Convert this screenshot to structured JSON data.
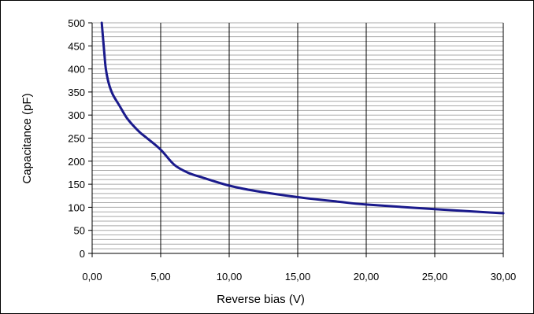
{
  "chart_data": {
    "type": "line",
    "title": "",
    "xlabel": "Reverse bias (V)",
    "ylabel": "Capacitance (pF)",
    "xlim": [
      0,
      30
    ],
    "ylim": [
      0,
      500
    ],
    "x_ticks": [
      "0,00",
      "5,00",
      "10,00",
      "15,00",
      "20,00",
      "25,00",
      "30,00"
    ],
    "y_ticks": [
      "0",
      "50",
      "100",
      "150",
      "200",
      "250",
      "300",
      "350",
      "400",
      "450",
      "500"
    ],
    "grid": {
      "major_vertical_every": 5,
      "horizontal_every": 10
    },
    "legend": "none",
    "series": [
      {
        "color": "#1a1a8c",
        "x": [
          0.7,
          0.9,
          1.0,
          1.2,
          1.5,
          2.0,
          2.5,
          3.0,
          3.5,
          4.0,
          5.0,
          6.0,
          7.0,
          8.0,
          10.0,
          12.0,
          15.0,
          18.0,
          20.0,
          25.0,
          30.0
        ],
        "y": [
          500,
          430,
          400,
          370,
          345,
          320,
          295,
          277,
          262,
          250,
          225,
          192,
          175,
          165,
          147,
          135,
          122,
          112,
          106,
          96,
          87
        ]
      }
    ]
  }
}
